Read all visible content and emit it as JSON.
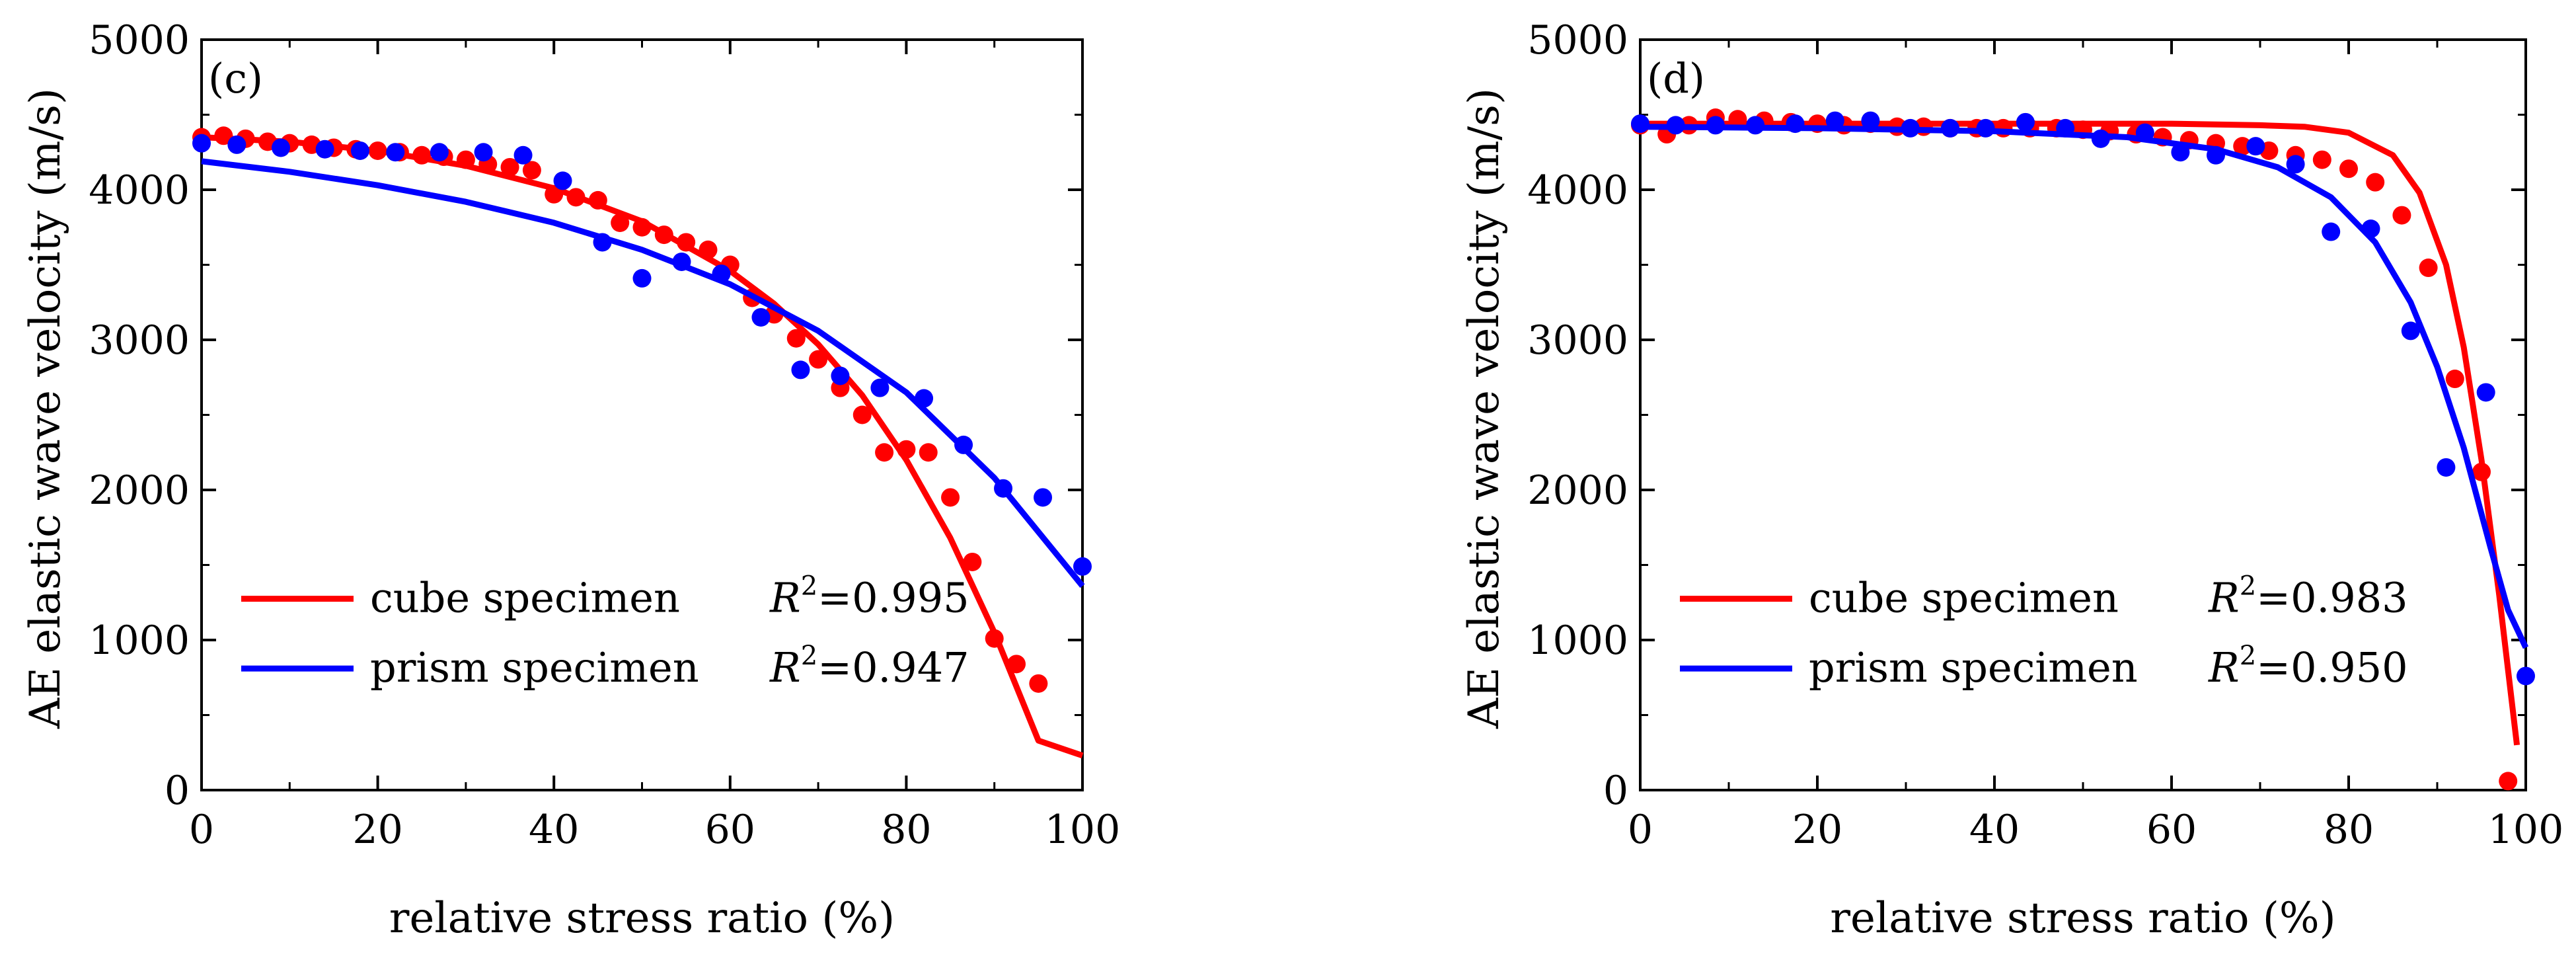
{
  "chart_data": [
    {
      "type": "scatter",
      "panel_label": "(c)",
      "xlabel": "relative stress ratio (%)",
      "ylabel": "AE elastic wave velocity (m/s)",
      "xlim": [
        0,
        100
      ],
      "ylim": [
        0,
        5000
      ],
      "xticks": [
        0,
        20,
        40,
        60,
        80,
        100
      ],
      "yticks": [
        0,
        1000,
        2000,
        3000,
        4000,
        5000
      ],
      "legend_placement": "bottom-left",
      "series": [
        {
          "name": "cube specimen",
          "color": "#ff0000",
          "r2_label": "R",
          "r2_sup": "2",
          "r2_value": "=0.995",
          "points": [
            [
              0,
              4350
            ],
            [
              2.5,
              4360
            ],
            [
              5,
              4340
            ],
            [
              7.5,
              4320
            ],
            [
              10,
              4310
            ],
            [
              12.5,
              4300
            ],
            [
              15,
              4280
            ],
            [
              17.5,
              4270
            ],
            [
              20,
              4260
            ],
            [
              22.5,
              4250
            ],
            [
              25,
              4230
            ],
            [
              27.5,
              4220
            ],
            [
              30,
              4200
            ],
            [
              32.5,
              4170
            ],
            [
              35,
              4150
            ],
            [
              37.5,
              4130
            ],
            [
              40,
              3970
            ],
            [
              42.5,
              3950
            ],
            [
              45,
              3930
            ],
            [
              47.5,
              3780
            ],
            [
              50,
              3750
            ],
            [
              52.5,
              3700
            ],
            [
              55,
              3650
            ],
            [
              57.5,
              3600
            ],
            [
              60,
              3500
            ],
            [
              62.5,
              3280
            ],
            [
              65,
              3170
            ],
            [
              67.5,
              3010
            ],
            [
              70,
              2870
            ],
            [
              72.5,
              2680
            ],
            [
              75,
              2500
            ],
            [
              77.5,
              2250
            ],
            [
              80,
              2270
            ],
            [
              82.5,
              2250
            ],
            [
              85,
              1950
            ],
            [
              87.5,
              1520
            ],
            [
              90,
              1010
            ],
            [
              92.5,
              840
            ],
            [
              95,
              710
            ]
          ],
          "fit": [
            [
              0,
              4350
            ],
            [
              10,
              4320
            ],
            [
              20,
              4260
            ],
            [
              30,
              4160
            ],
            [
              40,
              4010
            ],
            [
              50,
              3790
            ],
            [
              60,
              3460
            ],
            [
              65,
              3240
            ],
            [
              70,
              2970
            ],
            [
              75,
              2630
            ],
            [
              80,
              2200
            ],
            [
              85,
              1680
            ],
            [
              90,
              1050
            ],
            [
              95,
              330
            ],
            [
              100,
              230
            ]
          ]
        },
        {
          "name": "prism specimen",
          "color": "#0000ff",
          "r2_label": "R",
          "r2_sup": "2",
          "r2_value": "=0.947",
          "points": [
            [
              0,
              4310
            ],
            [
              4,
              4300
            ],
            [
              9,
              4280
            ],
            [
              14,
              4270
            ],
            [
              18,
              4260
            ],
            [
              22,
              4250
            ],
            [
              27,
              4250
            ],
            [
              32,
              4250
            ],
            [
              36.5,
              4230
            ],
            [
              41,
              4060
            ],
            [
              45.5,
              3650
            ],
            [
              50,
              3410
            ],
            [
              54.5,
              3520
            ],
            [
              59,
              3440
            ],
            [
              63.5,
              3150
            ],
            [
              68,
              2800
            ],
            [
              72.5,
              2760
            ],
            [
              77,
              2680
            ],
            [
              82,
              2610
            ],
            [
              86.5,
              2300
            ],
            [
              91,
              2010
            ],
            [
              95.5,
              1950
            ],
            [
              100,
              1490
            ]
          ],
          "fit": [
            [
              0,
              4190
            ],
            [
              10,
              4120
            ],
            [
              20,
              4030
            ],
            [
              30,
              3920
            ],
            [
              40,
              3780
            ],
            [
              50,
              3600
            ],
            [
              60,
              3370
            ],
            [
              70,
              3060
            ],
            [
              80,
              2650
            ],
            [
              90,
              2080
            ],
            [
              100,
              1360
            ]
          ]
        }
      ]
    },
    {
      "type": "scatter",
      "panel_label": "(d)",
      "xlabel": "relative stress ratio (%)",
      "ylabel": "AE elastic wave velocity (m/s)",
      "xlim": [
        0,
        100
      ],
      "ylim": [
        0,
        5000
      ],
      "xticks": [
        0,
        20,
        40,
        60,
        80,
        100
      ],
      "yticks": [
        0,
        1000,
        2000,
        3000,
        4000,
        5000
      ],
      "legend_placement": "bottom-left",
      "series": [
        {
          "name": "cube specimen",
          "color": "#ff0000",
          "r2_label": "R",
          "r2_sup": "2",
          "r2_value": "=0.983",
          "points": [
            [
              0,
              4430
            ],
            [
              3,
              4370
            ],
            [
              5.5,
              4430
            ],
            [
              8.5,
              4480
            ],
            [
              11,
              4470
            ],
            [
              14,
              4460
            ],
            [
              17,
              4450
            ],
            [
              20,
              4440
            ],
            [
              23,
              4430
            ],
            [
              26,
              4440
            ],
            [
              29,
              4420
            ],
            [
              32,
              4420
            ],
            [
              35,
              4410
            ],
            [
              38,
              4410
            ],
            [
              41,
              4410
            ],
            [
              44,
              4410
            ],
            [
              47,
              4410
            ],
            [
              50,
              4400
            ],
            [
              53,
              4390
            ],
            [
              56,
              4370
            ],
            [
              59,
              4350
            ],
            [
              62,
              4330
            ],
            [
              65,
              4310
            ],
            [
              68,
              4290
            ],
            [
              71,
              4260
            ],
            [
              74,
              4230
            ],
            [
              77,
              4200
            ],
            [
              80,
              4140
            ],
            [
              83,
              4050
            ],
            [
              86,
              3830
            ],
            [
              89,
              3480
            ],
            [
              92,
              2740
            ],
            [
              95,
              2120
            ],
            [
              98,
              60
            ]
          ],
          "fit": [
            [
              0,
              4440
            ],
            [
              20,
              4440
            ],
            [
              40,
              4440
            ],
            [
              60,
              4440
            ],
            [
              70,
              4430
            ],
            [
              75,
              4420
            ],
            [
              80,
              4380
            ],
            [
              85,
              4230
            ],
            [
              88,
              3980
            ],
            [
              91,
              3500
            ],
            [
              93,
              2950
            ],
            [
              95,
              2200
            ],
            [
              97,
              1300
            ],
            [
              99,
              300
            ]
          ]
        },
        {
          "name": "prism specimen",
          "color": "#0000ff",
          "r2_label": "R",
          "r2_sup": "2",
          "r2_value": "=0.950",
          "points": [
            [
              0,
              4440
            ],
            [
              4,
              4430
            ],
            [
              8.5,
              4430
            ],
            [
              13,
              4430
            ],
            [
              17.5,
              4440
            ],
            [
              22,
              4460
            ],
            [
              26,
              4460
            ],
            [
              30.5,
              4410
            ],
            [
              35,
              4410
            ],
            [
              39,
              4410
            ],
            [
              43.5,
              4450
            ],
            [
              48,
              4410
            ],
            [
              52,
              4340
            ],
            [
              57,
              4380
            ],
            [
              61,
              4250
            ],
            [
              65,
              4230
            ],
            [
              69.5,
              4290
            ],
            [
              74,
              4170
            ],
            [
              78,
              3720
            ],
            [
              82.5,
              3740
            ],
            [
              87,
              3060
            ],
            [
              91,
              2150
            ],
            [
              95.5,
              2650
            ],
            [
              100,
              760
            ]
          ],
          "fit": [
            [
              0,
              4420
            ],
            [
              20,
              4410
            ],
            [
              40,
              4390
            ],
            [
              55,
              4350
            ],
            [
              65,
              4270
            ],
            [
              72,
              4150
            ],
            [
              78,
              3950
            ],
            [
              83,
              3650
            ],
            [
              87,
              3250
            ],
            [
              90,
              2820
            ],
            [
              93,
              2280
            ],
            [
              96,
              1620
            ],
            [
              98,
              1200
            ],
            [
              100,
              950
            ]
          ]
        }
      ]
    }
  ]
}
